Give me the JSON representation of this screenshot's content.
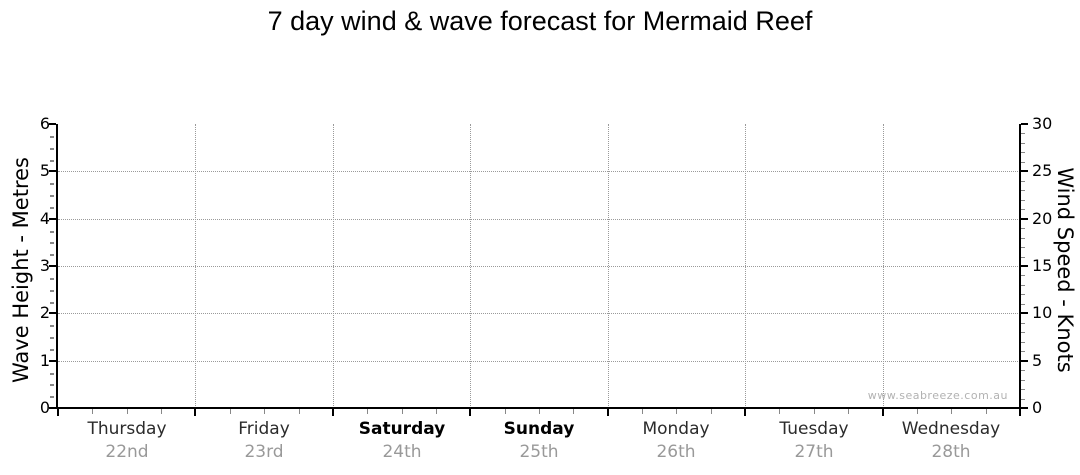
{
  "title": "7 day wind & wave forecast for Mermaid Reef",
  "watermark": "www.seabreeze.com.au",
  "chart_data": {
    "type": "line",
    "title": "7 day wind & wave forecast for Mermaid Reef",
    "series": [],
    "categories": [
      "Thursday 22nd",
      "Friday 23rd",
      "Saturday 24th",
      "Sunday 25th",
      "Monday 26th",
      "Tuesday 27th",
      "Wednesday 28th"
    ],
    "left_axis": {
      "label": "Wave Height - Metres",
      "range": [
        0,
        6
      ],
      "major_ticks": [
        0,
        1,
        2,
        3,
        4,
        5,
        6
      ],
      "minor_step": 0.25
    },
    "right_axis": {
      "label": "Wind Speed - Knots",
      "range": [
        0,
        30
      ],
      "major_ticks": [
        0,
        5,
        10,
        15,
        20,
        25,
        30
      ],
      "minor_step": 1
    },
    "x_axis": {
      "days": [
        {
          "name": "Thursday",
          "date": "22nd",
          "weekend": false
        },
        {
          "name": "Friday",
          "date": "23rd",
          "weekend": false
        },
        {
          "name": "Saturday",
          "date": "24th",
          "weekend": true
        },
        {
          "name": "Sunday",
          "date": "25th",
          "weekend": true
        },
        {
          "name": "Monday",
          "date": "26th",
          "weekend": false
        },
        {
          "name": "Tuesday",
          "date": "27th",
          "weekend": false
        },
        {
          "name": "Wednesday",
          "date": "28th",
          "weekend": false
        }
      ],
      "minor_ticks_per_day": 3
    },
    "grid": {
      "horizontal_dotted": true,
      "vertical_day_boundaries_dotted": true,
      "legend": "none"
    }
  },
  "colors": {
    "background": "#ffffff",
    "axis": "#000000",
    "grid": "#9a9a9a",
    "title": "#000000",
    "day_name": "#2b2b2b",
    "weekend_day_name": "#000000",
    "day_date": "#999999",
    "watermark": "#b2b2b2"
  }
}
